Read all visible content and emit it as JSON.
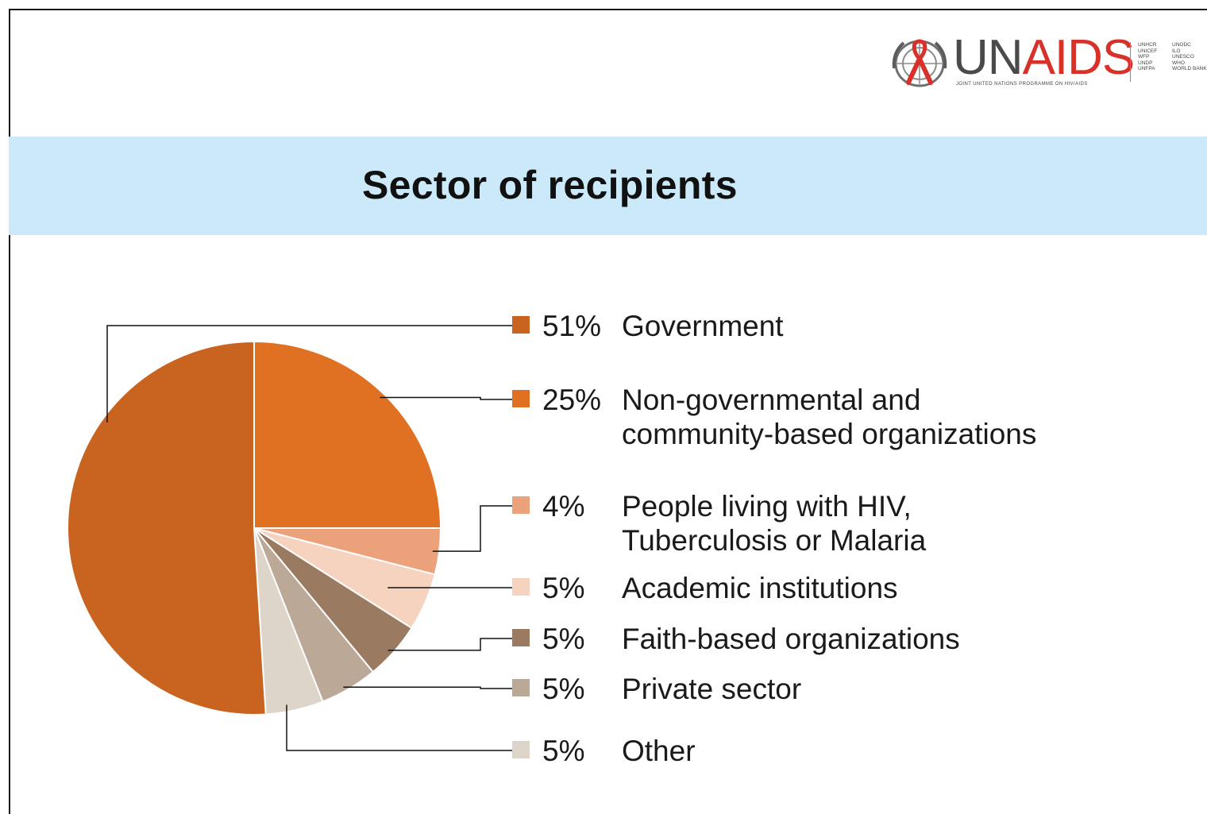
{
  "slide": {
    "title": "Sector of recipients",
    "logo": {
      "wordmark_un": "UN",
      "wordmark_aids": "AIDS",
      "tagline": "JOINT UNITED NATIONS PROGRAMME ON HIV/AIDS",
      "agencies_col1": [
        "UNHCR",
        "UNICEF",
        "WFP",
        "UNDP",
        "UNFPA"
      ],
      "agencies_col2": [
        "UNODC",
        "ILO",
        "UNESCO",
        "WHO",
        "WORLD BANK"
      ],
      "icon": "red-ribbon-un-emblem-icon",
      "colors": {
        "un": "#4a4a4a",
        "aids": "#d8312a"
      }
    },
    "band_color": "#cbe9f8"
  },
  "chart_data": {
    "type": "pie",
    "title": "Sector of recipients",
    "start": "12 o'clock, clockwise",
    "slices": [
      {
        "label_lines": [
          "Non-governmental and",
          "community-based organizations"
        ],
        "value": 25,
        "value_label": "25%",
        "color": "#e07022"
      },
      {
        "label_lines": [
          "People living with HIV,",
          "Tuberculosis or Malaria"
        ],
        "value": 4,
        "value_label": "4%",
        "color": "#eba27a"
      },
      {
        "label_lines": [
          "Academic institutions"
        ],
        "value": 5,
        "value_label": "5%",
        "color": "#f6d3bf"
      },
      {
        "label_lines": [
          "Faith-based organizations"
        ],
        "value": 5,
        "value_label": "5%",
        "color": "#9a7b62"
      },
      {
        "label_lines": [
          "Private sector"
        ],
        "value": 5,
        "value_label": "5%",
        "color": "#bba897"
      },
      {
        "label_lines": [
          "Other"
        ],
        "value": 5,
        "value_label": "5%",
        "color": "#ddd4ca"
      },
      {
        "label_lines": [
          "Government"
        ],
        "value": 51,
        "value_label": "51%",
        "color": "#c8641f"
      }
    ],
    "legend_order": [
      "Government",
      "Non-governmental and community-based organizations",
      "People living with HIV, Tuberculosis or Malaria",
      "Academic institutions",
      "Faith-based organizations",
      "Private sector",
      "Other"
    ],
    "legend_placement": "right"
  }
}
